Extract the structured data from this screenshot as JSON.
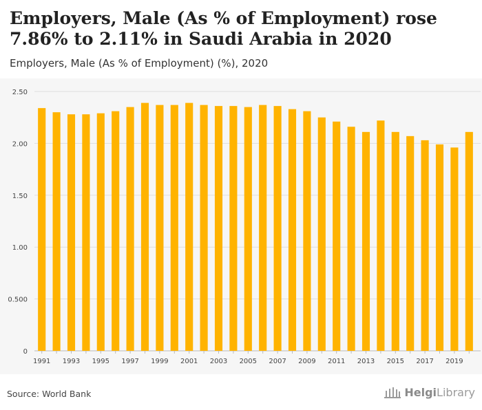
{
  "header": {
    "title": "Employers, Male (As % of Employment) rose 7.86% to 2.11% in Saudi Arabia in 2020",
    "subtitle": "Employers, Male (As % of Employment) (%), 2020"
  },
  "footer": {
    "source": "Source: World Bank",
    "brand_bold": "Helgi",
    "brand_rest": "Library"
  },
  "colors": {
    "bar": "#FFB300",
    "grid": "#dddddd",
    "axis_text": "#444444"
  },
  "chart_data": {
    "type": "bar",
    "title": "Employers, Male (As % of Employment) rose 7.86% to 2.11% in Saudi Arabia in 2020",
    "xlabel": "",
    "ylabel": "",
    "ylim": [
      0,
      2.5
    ],
    "yticks": [
      0,
      0.5,
      1.0,
      1.5,
      2.0,
      2.5
    ],
    "ytick_labels": [
      "0",
      "0.500",
      "1.00",
      "1.50",
      "2.00",
      "2.50"
    ],
    "categories": [
      "1991",
      "1992",
      "1993",
      "1994",
      "1995",
      "1996",
      "1997",
      "1998",
      "1999",
      "2000",
      "2001",
      "2002",
      "2003",
      "2004",
      "2005",
      "2006",
      "2007",
      "2008",
      "2009",
      "2010",
      "2011",
      "2012",
      "2013",
      "2014",
      "2015",
      "2016",
      "2017",
      "2018",
      "2019",
      "2020"
    ],
    "xtick_labels": [
      "1991",
      "1993",
      "1995",
      "1997",
      "1999",
      "2001",
      "2003",
      "2005",
      "2007",
      "2009",
      "2011",
      "2013",
      "2015",
      "2017",
      "2019"
    ],
    "values": [
      2.34,
      2.3,
      2.28,
      2.28,
      2.29,
      2.31,
      2.35,
      2.39,
      2.37,
      2.37,
      2.39,
      2.37,
      2.36,
      2.36,
      2.35,
      2.37,
      2.36,
      2.33,
      2.31,
      2.25,
      2.21,
      2.16,
      2.11,
      2.22,
      2.11,
      2.07,
      2.03,
      1.99,
      1.96,
      2.11
    ],
    "grid": true,
    "legend": "none"
  }
}
